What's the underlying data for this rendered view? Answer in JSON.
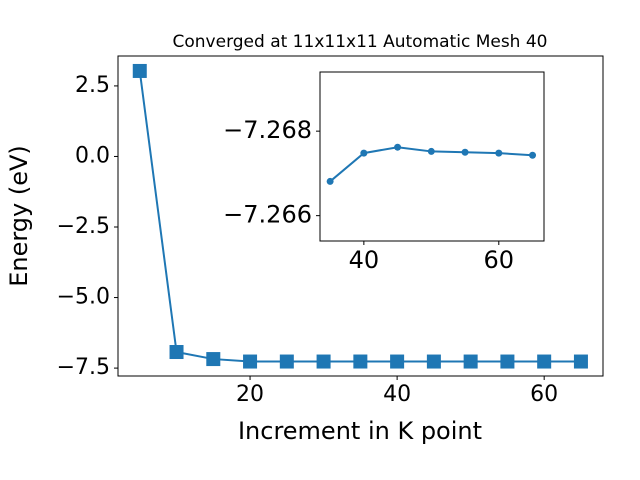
{
  "chart_data": [
    {
      "type": "line",
      "title": "Converged at 11x11x11 Automatic Mesh 40",
      "xlabel": "Increment in K point",
      "ylabel": "Energy (eV)",
      "marker": "square",
      "x": [
        5,
        10,
        15,
        20,
        25,
        30,
        35,
        40,
        45,
        50,
        55,
        60,
        65
      ],
      "series": [
        {
          "color": "#1f77b4",
          "values": [
            3.03,
            -6.93,
            -7.18,
            -7.2675,
            -7.2675,
            -7.2675,
            -7.2668,
            -7.2675,
            -7.2676,
            -7.2675,
            -7.2675,
            -7.2675,
            -7.2674
          ]
        }
      ],
      "xlim": [
        2.04,
        68.0
      ],
      "ylim": [
        -7.78,
        3.56
      ],
      "xticks": [
        20,
        40,
        60
      ],
      "yticks": [
        {
          "value": -7.5,
          "label": "−7.5"
        },
        {
          "value": -5,
          "label": "−5.0"
        },
        {
          "value": -2.5,
          "label": "−2.5"
        },
        {
          "value": 0,
          "label": "0.0"
        },
        2.5
      ]
    },
    {
      "type": "line",
      "marker": "circle",
      "x": [
        35,
        40,
        45,
        50,
        55,
        60,
        65
      ],
      "series": [
        {
          "color": "#1f77b4",
          "values": [
            -7.26681,
            -7.26748,
            -7.26762,
            -7.26752,
            -7.2675,
            -7.26748,
            -7.26743
          ]
        }
      ],
      "xlim": [
        33.5,
        66.7
      ],
      "ylim": [
        -7.2654,
        -7.2694
      ],
      "xticks": [
        40,
        60
      ],
      "yticks": [
        {
          "value": -7.268,
          "label": "−7.268"
        },
        {
          "value": -7.266,
          "label": "−7.266"
        }
      ]
    }
  ]
}
